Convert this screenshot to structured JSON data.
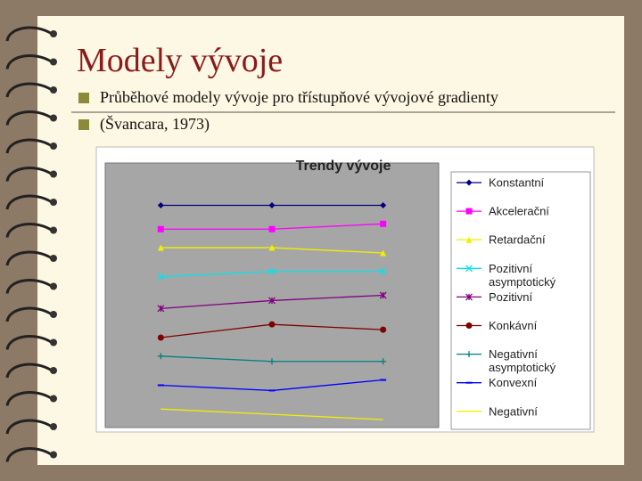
{
  "slide": {
    "title": "Modely vývoje",
    "bullets": [
      "Průběhové modely vývoje pro třístupňové vývojové gradienty",
      "(Švancara, 1973)"
    ]
  },
  "chart_data": {
    "type": "line",
    "title": "Trendy vývoje",
    "categories": [
      null,
      null,
      null
    ],
    "ylim": [
      0,
      100
    ],
    "legend": "right",
    "series": [
      {
        "name": "Konstantní",
        "color": "#000080",
        "marker": "diamond",
        "values": [
          84,
          84,
          84
        ]
      },
      {
        "name": "Akcelerační",
        "color": "#ff00ff",
        "marker": "square",
        "values": [
          75,
          75,
          77
        ]
      },
      {
        "name": "Retardační",
        "color": "#f0f000",
        "marker": "triangle",
        "values": [
          68,
          68,
          66
        ]
      },
      {
        "name": "Pozitivní asymptotický",
        "color": "#00e5ee",
        "marker": "x",
        "values": [
          57,
          59,
          59
        ]
      },
      {
        "name": "Pozitivní",
        "color": "#800080",
        "marker": "star",
        "values": [
          45,
          48,
          50
        ]
      },
      {
        "name": "Konkávní",
        "color": "#800000",
        "marker": "circle",
        "values": [
          34,
          39,
          37
        ]
      },
      {
        "name": "Negativní asymptotický",
        "color": "#008080",
        "marker": "plus",
        "values": [
          27,
          25,
          25
        ]
      },
      {
        "name": "Konvexní",
        "color": "#0000ff",
        "marker": "dash",
        "values": [
          16,
          14,
          18
        ]
      },
      {
        "name": "Negativní",
        "color": "#f0f000",
        "marker": "none",
        "values": [
          7,
          5,
          3
        ]
      }
    ]
  }
}
